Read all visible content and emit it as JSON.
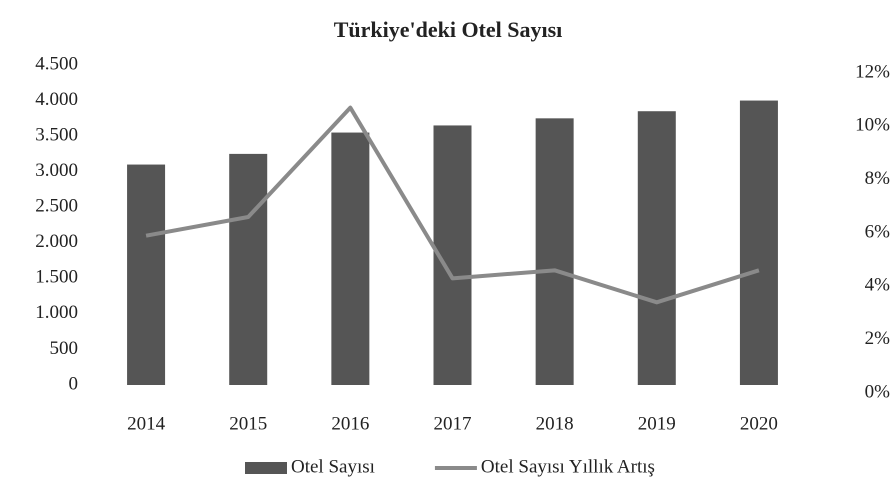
{
  "chart_data": {
    "type": "bar_line",
    "title": "Türkiye'deki Otel Sayısı",
    "categories": [
      "2014",
      "2015",
      "2016",
      "2017",
      "2018",
      "2019",
      "2020"
    ],
    "series": [
      {
        "name": "Otel Sayısı",
        "color": "#555555",
        "values": [
          3100,
          3250,
          3550,
          3650,
          3750,
          3850,
          4000
        ]
      },
      {
        "name": "Otel Sayısı Yıllık Artış",
        "color": "#8a8a8a",
        "axis": "y2",
        "values": [
          5.6,
          6.3,
          10.4,
          4.0,
          4.3,
          3.1,
          4.3
        ]
      }
    ],
    "ylim": [
      0,
      4500
    ],
    "yticks": [
      0,
      500,
      {
        "value": 1000,
        "label": "1.000"
      },
      {
        "value": 1500,
        "label": "1.500"
      },
      {
        "value": 2000,
        "label": "2.000"
      },
      {
        "value": 2500,
        "label": "2.500"
      },
      {
        "value": 3000,
        "label": "3.000"
      },
      {
        "value": 3500,
        "label": "3.500"
      },
      {
        "value": 4000,
        "label": "4.000"
      },
      {
        "value": 4500,
        "label": "4.500"
      }
    ],
    "y2lim": [
      0,
      12
    ],
    "y2ticks": [
      {
        "value": 0,
        "label": "0%"
      },
      {
        "value": 2,
        "label": "2%"
      },
      {
        "value": 4,
        "label": "4%"
      },
      {
        "value": 6,
        "label": "6%"
      },
      {
        "value": 8,
        "label": "8%"
      },
      {
        "value": 10,
        "label": "10%"
      },
      {
        "value": 12,
        "label": "12%"
      }
    ],
    "legend": "bottom"
  }
}
